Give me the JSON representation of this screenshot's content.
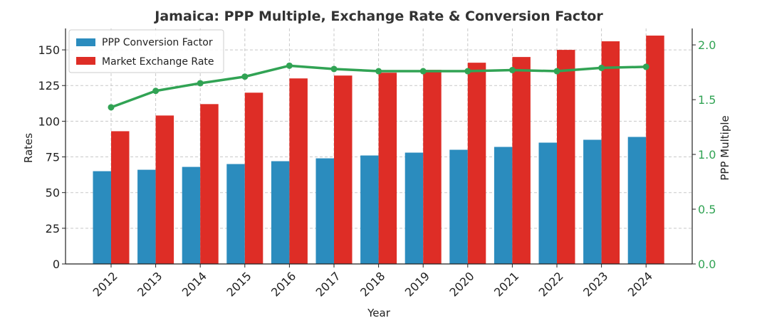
{
  "chart_data": {
    "type": "bar",
    "title": "Jamaica: PPP Multiple, Exchange Rate & Conversion Factor",
    "xlabel": "Year",
    "ylabel": "Rates",
    "y2label": "PPP Multiple",
    "categories": [
      "2012",
      "2013",
      "2014",
      "2015",
      "2016",
      "2017",
      "2018",
      "2019",
      "2020",
      "2021",
      "2022",
      "2023",
      "2024"
    ],
    "ylim": [
      0,
      165
    ],
    "y2lim": [
      0,
      2.15
    ],
    "yticks": [
      0,
      25,
      50,
      75,
      100,
      125,
      150
    ],
    "y2ticks": [
      "0.0",
      "0.5",
      "1.0",
      "1.5",
      "2.0"
    ],
    "grid": true,
    "legend_position": "top-left",
    "series": [
      {
        "name": "PPP Conversion Factor",
        "type": "bar",
        "axis": "left",
        "color": "#2b8cbe",
        "values": [
          65,
          66,
          68,
          70,
          72,
          74,
          76,
          78,
          80,
          82,
          85,
          87,
          89
        ]
      },
      {
        "name": "Market Exchange Rate",
        "type": "bar",
        "axis": "left",
        "color": "#de2d26",
        "values": [
          93,
          104,
          112,
          120,
          130,
          132,
          134,
          136,
          141,
          145,
          150,
          156,
          160
        ]
      },
      {
        "name": "PPP Multiple",
        "type": "line",
        "axis": "right",
        "color": "#31a354",
        "values": [
          1.43,
          1.58,
          1.65,
          1.71,
          1.81,
          1.78,
          1.76,
          1.76,
          1.76,
          1.77,
          1.76,
          1.79,
          1.8
        ]
      }
    ]
  }
}
